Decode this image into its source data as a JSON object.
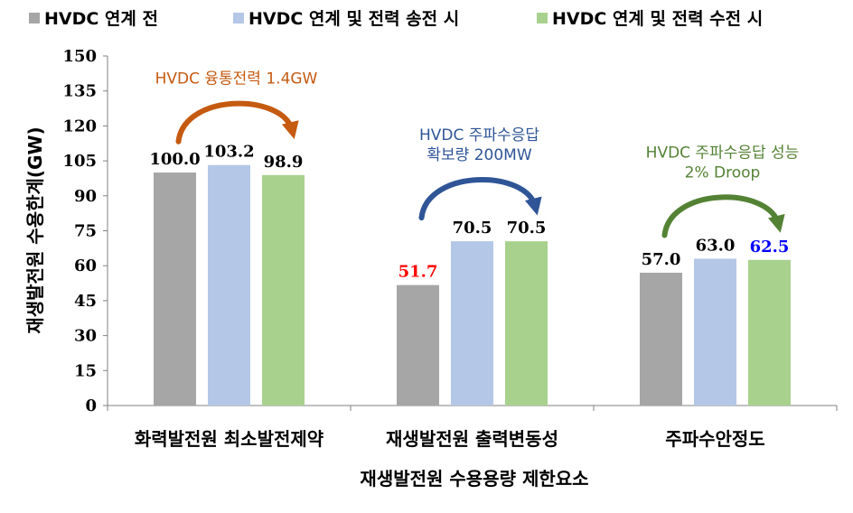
{
  "chart_data": {
    "type": "bar",
    "categories": [
      "화력발전원 최소발전제약",
      "재생발전원 출력변동성",
      "주파수안정도"
    ],
    "series": [
      {
        "name": "HVDC 연계 전",
        "color": "#a6a6a6",
        "values": [
          100.0,
          51.7,
          57.0
        ],
        "labels": [
          "100.0",
          "51.7",
          "57.0"
        ],
        "label_colors": [
          "#000000",
          "#ff0000",
          "#000000"
        ]
      },
      {
        "name": "HVDC 연계 및 전력 송전 시",
        "color": "#b4c7e7",
        "values": [
          103.2,
          70.5,
          63.0
        ],
        "labels": [
          "103.2",
          "70.5",
          "63.0"
        ],
        "label_colors": [
          "#000000",
          "#000000",
          "#000000"
        ]
      },
      {
        "name": "HVDC 연계 및 전력 수전 시",
        "color": "#a9d18e",
        "values": [
          98.9,
          70.5,
          62.5
        ],
        "labels": [
          "98.9",
          "70.5",
          "62.5"
        ],
        "label_colors": [
          "#000000",
          "#000000",
          "#0000ff"
        ]
      }
    ],
    "ylabel": "재생발전원 수용한계(GW)",
    "xlabel": "재생발전원 수용용량 제한요소",
    "ylim": [
      0,
      150
    ],
    "yticks": [
      0,
      15,
      30,
      45,
      60,
      75,
      90,
      105,
      120,
      135,
      150
    ],
    "legend_position": "top",
    "grid": false,
    "annotations": [
      {
        "lines": [
          "HVDC 융통전력 1.4GW"
        ],
        "color": "#c55a11",
        "arrow_color": "#c55a11",
        "category_index": 0
      },
      {
        "lines": [
          "HVDC 주파수응답",
          "확보량 200MW"
        ],
        "color": "#2f5597",
        "arrow_color": "#2f5597",
        "category_index": 1
      },
      {
        "lines": [
          "HVDC 주파수응답 성능",
          "2% Droop"
        ],
        "color": "#548235",
        "arrow_color": "#548235",
        "category_index": 2
      }
    ]
  }
}
